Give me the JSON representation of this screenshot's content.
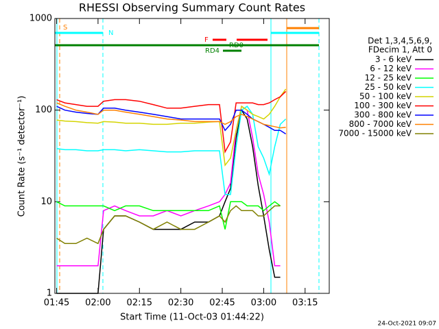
{
  "chart_data": {
    "type": "line",
    "title": "RHESSI Observing Summary Count Rates",
    "x_label": "Start Time (11-Oct-03 01:44:22)",
    "y_label": "Count Rate (s⁻¹ detector⁻¹)",
    "legend_header": [
      "Det 1,3,4,5,6,9,",
      "FDecim 1, Att 0"
    ],
    "footer": "24-Oct-2021 09:07",
    "annotations": [
      "S",
      "N",
      "F",
      "RD0",
      "RD4"
    ],
    "ylog": true,
    "ylim": [
      1,
      1000
    ],
    "yticks": [
      1,
      10,
      100,
      1000
    ],
    "xlim": [
      104.37,
      203.75
    ],
    "xticks": [
      {
        "value": 105,
        "label": "01:45"
      },
      {
        "value": 120,
        "label": "02:00"
      },
      {
        "value": 135,
        "label": "02:15"
      },
      {
        "value": 150,
        "label": "02:30"
      },
      {
        "value": 165,
        "label": "02:45"
      },
      {
        "value": 180,
        "label": "03:00"
      },
      {
        "value": 195,
        "label": "03:15"
      }
    ],
    "x": [
      105,
      108,
      112,
      116,
      120,
      122,
      126,
      130,
      135,
      140,
      145,
      150,
      155,
      160,
      164,
      166,
      168,
      170,
      172,
      174,
      176,
      178,
      180,
      182,
      184,
      186,
      188
    ],
    "series": [
      {
        "name": "3 - 6 keV",
        "color": "#000000",
        "values": [
          1,
          1,
          1,
          1,
          1,
          5,
          7,
          7,
          6,
          5,
          5,
          5,
          6,
          6,
          7,
          10,
          14,
          50,
          100,
          80,
          40,
          15,
          7,
          3,
          1.5,
          1.5,
          null
        ]
      },
      {
        "name": "6 - 12 keV",
        "color": "#ff00ff",
        "values": [
          2,
          2,
          2,
          2,
          2,
          8,
          9,
          8,
          7,
          7,
          8,
          7,
          8,
          9,
          10,
          12,
          16,
          60,
          110,
          100,
          50,
          20,
          12,
          6,
          2,
          2,
          null
        ]
      },
      {
        "name": "12 - 25 keV",
        "color": "#00ff00",
        "values": [
          10,
          9,
          9,
          9,
          9,
          9,
          8,
          9,
          9,
          8,
          8,
          8,
          8,
          8,
          9,
          5,
          10,
          10,
          10,
          9,
          9,
          9,
          8,
          9,
          10,
          9,
          null
        ]
      },
      {
        "name": "25 - 50 keV",
        "color": "#00ffff",
        "values": [
          38,
          37,
          37,
          36,
          36,
          37,
          37,
          36,
          37,
          36,
          35,
          35,
          36,
          36,
          36,
          12,
          12,
          40,
          100,
          110,
          90,
          40,
          30,
          20,
          40,
          70,
          80
        ]
      },
      {
        "name": "50 - 100 keV",
        "color": "#d4d400",
        "values": [
          78,
          76,
          75,
          73,
          72,
          75,
          74,
          72,
          72,
          70,
          70,
          72,
          72,
          74,
          75,
          25,
          30,
          60,
          110,
          100,
          90,
          85,
          80,
          90,
          110,
          140,
          170
        ]
      },
      {
        "name": "100 - 300 keV",
        "color": "#ff0000",
        "values": [
          130,
          120,
          115,
          110,
          110,
          125,
          130,
          130,
          125,
          115,
          105,
          105,
          110,
          115,
          115,
          35,
          45,
          120,
          120,
          120,
          120,
          115,
          115,
          120,
          130,
          140,
          160
        ]
      },
      {
        "name": "300 - 800 keV",
        "color": "#0000ff",
        "values": [
          110,
          100,
          95,
          92,
          90,
          105,
          105,
          100,
          95,
          90,
          85,
          80,
          80,
          80,
          80,
          60,
          70,
          100,
          100,
          90,
          80,
          75,
          70,
          65,
          60,
          60,
          55
        ]
      },
      {
        "name": "800 - 7000 keV",
        "color": "#ff8000",
        "values": [
          120,
          110,
          100,
          95,
          90,
          100,
          100,
          95,
          90,
          85,
          80,
          78,
          75,
          75,
          75,
          70,
          75,
          85,
          90,
          85,
          80,
          75,
          70,
          68,
          66,
          64,
          65
        ]
      },
      {
        "name": "7000 - 15000 keV",
        "color": "#808000",
        "values": [
          4,
          3.5,
          3.5,
          4,
          3.5,
          5,
          7,
          7,
          6,
          5,
          6,
          5,
          5,
          6,
          7,
          6,
          8,
          9,
          8,
          8,
          8,
          7,
          7,
          8,
          9,
          9,
          null
        ]
      }
    ]
  }
}
